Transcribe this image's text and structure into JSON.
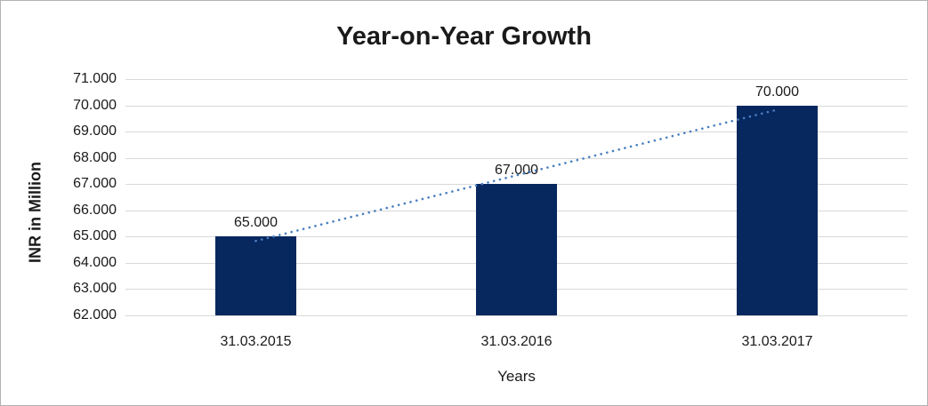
{
  "window": {
    "background": "#ffffff",
    "frame_border_color": "#b3b3b3"
  },
  "chart_data": {
    "type": "bar",
    "title": "Year-on-Year Growth",
    "xlabel": "Years",
    "ylabel": "INR in Million",
    "categories": [
      "31.03.2015",
      "31.03.2016",
      "31.03.2017"
    ],
    "values": [
      65000,
      67000,
      70000
    ],
    "value_labels": [
      "65.000",
      "67.000",
      "70.000"
    ],
    "y_ticks": [
      {
        "value": 71000,
        "label": "71.000"
      },
      {
        "value": 70000,
        "label": "70.000"
      },
      {
        "value": 69000,
        "label": "69.000"
      },
      {
        "value": 68000,
        "label": "68.000"
      },
      {
        "value": 67000,
        "label": "67.000"
      },
      {
        "value": 66000,
        "label": "66.000"
      },
      {
        "value": 65000,
        "label": "65.000"
      },
      {
        "value": 64000,
        "label": "64.000"
      },
      {
        "value": 63000,
        "label": "63.000"
      },
      {
        "value": 62000,
        "label": "62.000"
      }
    ],
    "ylim": [
      62000,
      71000
    ],
    "grid": true,
    "legend": false,
    "bar_color": "#07275f",
    "gridline_color": "#d9d9d9",
    "text_color": "#1a1a1a",
    "trendline": {
      "type": "linear",
      "style": "dotted",
      "color": "#4a7fc1",
      "fit_values": [
        64833,
        67333,
        69833
      ]
    }
  }
}
